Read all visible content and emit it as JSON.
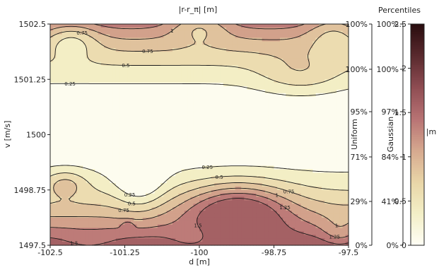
{
  "chart_data": {
    "type": "heatmap",
    "title": "|r-r_π| [m]",
    "xlabel": "d [m]",
    "ylabel": "v [m/s]",
    "x_ticks": [
      "-102.5",
      "-101.25",
      "-100",
      "-98.75",
      "-97.5"
    ],
    "y_ticks": [
      "1502.5",
      "1501.25",
      "1500",
      "1498.75",
      "1497.5"
    ],
    "xlim": [
      -102.5,
      -97.5
    ],
    "ylim": [
      1497.5,
      1502.5
    ],
    "contour_levels": [
      0.25,
      0.5,
      0.75,
      1,
      1.25,
      1.5
    ],
    "colorbar": {
      "label": "|m",
      "ticks": [
        "0",
        "0.5",
        "1",
        "1.5",
        "2",
        "2.5"
      ],
      "range": [
        0,
        2.5
      ],
      "colors": [
        "#fffef6",
        "#f3efc7",
        "#e9d6a8",
        "#d6a98f",
        "#b87374",
        "#8f4d53",
        "#5a2a2e",
        "#2a0d0f"
      ]
    },
    "percentiles": {
      "title": "Percentiles",
      "uniform": {
        "name": "Uniform",
        "labels": [
          "100%",
          "100%",
          "95%",
          "71%",
          "29%",
          "0%"
        ]
      },
      "gaussian": {
        "name": "Gaussian",
        "labels": [
          "100%",
          "100%",
          "97%",
          "84%",
          "41%",
          "0%"
        ]
      }
    }
  }
}
